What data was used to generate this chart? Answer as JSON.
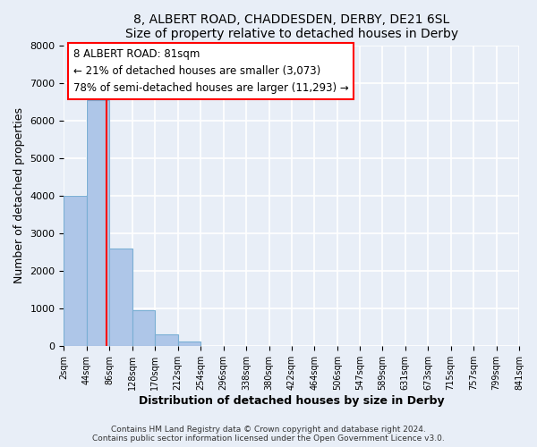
{
  "title": "8, ALBERT ROAD, CHADDESDEN, DERBY, DE21 6SL",
  "subtitle": "Size of property relative to detached houses in Derby",
  "xlabel": "Distribution of detached houses by size in Derby",
  "ylabel": "Number of detached properties",
  "bin_edges": [
    2,
    44,
    86,
    128,
    170,
    212,
    254,
    296,
    338,
    380,
    422,
    464,
    506,
    547,
    589,
    631,
    673,
    715,
    757,
    799,
    841
  ],
  "bar_heights": [
    4000,
    6550,
    2600,
    950,
    325,
    130,
    0,
    0,
    0,
    0,
    0,
    0,
    0,
    0,
    0,
    0,
    0,
    0,
    0,
    0
  ],
  "bar_color": "#aec6e8",
  "bar_edgecolor": "#7aafd4",
  "property_line_x": 81,
  "property_line_color": "red",
  "annotation_title": "8 ALBERT ROAD: 81sqm",
  "annotation_line1": "← 21% of detached houses are smaller (3,073)",
  "annotation_line2": "78% of semi-detached houses are larger (11,293) →",
  "annotation_box_color": "white",
  "annotation_box_edgecolor": "red",
  "ylim": [
    0,
    8000
  ],
  "tick_labels": [
    "2sqm",
    "44sqm",
    "86sqm",
    "128sqm",
    "170sqm",
    "212sqm",
    "254sqm",
    "296sqm",
    "338sqm",
    "380sqm",
    "422sqm",
    "464sqm",
    "506sqm",
    "547sqm",
    "589sqm",
    "631sqm",
    "673sqm",
    "715sqm",
    "757sqm",
    "799sqm",
    "841sqm"
  ],
  "footer_line1": "Contains HM Land Registry data © Crown copyright and database right 2024.",
  "footer_line2": "Contains public sector information licensed under the Open Government Licence v3.0.",
  "background_color": "#e8eef7",
  "grid_color": "white"
}
